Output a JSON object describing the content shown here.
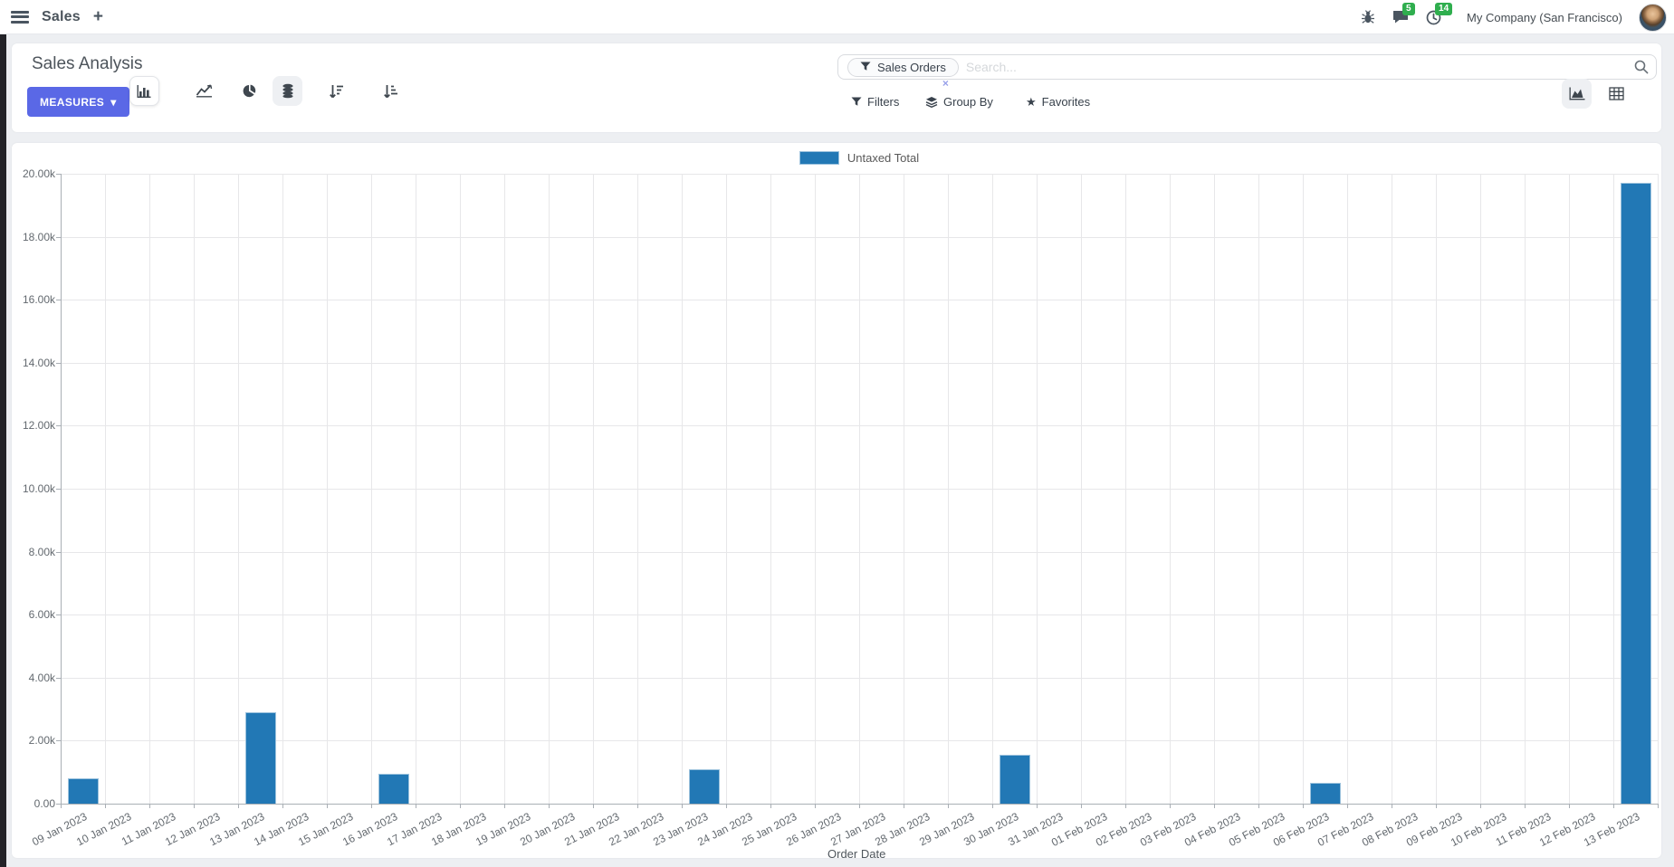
{
  "navbar": {
    "app_label": "Sales",
    "messages_badge": "5",
    "activities_badge": "14",
    "company_name": "My Company (San Francisco)"
  },
  "control_panel": {
    "title": "Sales Analysis",
    "measures_button": "MEASURES",
    "search": {
      "facet": "Sales Orders",
      "placeholder": "Search...",
      "facet_remove": "×"
    },
    "filters_label": "Filters",
    "group_by_label": "Group By",
    "favorites_label": "Favorites"
  },
  "icons": {
    "measures_caret": "▾",
    "plus": "+",
    "favorites_star": "★"
  },
  "colors": {
    "primary_button": "#5a68e6",
    "bar_fill": "#2278b5",
    "bar_border": "#9cc2dd",
    "badge_green": "#2fae4e"
  },
  "chart_data": {
    "type": "bar",
    "title": "",
    "legend_position": "top",
    "grid": true,
    "xlabel": "Order Date",
    "ylabel": "",
    "ylim": [
      0,
      20000
    ],
    "y_tick_labels": [
      "0.00",
      "2.00k",
      "4.00k",
      "6.00k",
      "8.00k",
      "10.00k",
      "12.00k",
      "14.00k",
      "16.00k",
      "18.00k",
      "20.00k"
    ],
    "categories": [
      "09 Jan 2023",
      "10 Jan 2023",
      "11 Jan 2023",
      "12 Jan 2023",
      "13 Jan 2023",
      "14 Jan 2023",
      "15 Jan 2023",
      "16 Jan 2023",
      "17 Jan 2023",
      "18 Jan 2023",
      "19 Jan 2023",
      "20 Jan 2023",
      "21 Jan 2023",
      "22 Jan 2023",
      "23 Jan 2023",
      "24 Jan 2023",
      "25 Jan 2023",
      "26 Jan 2023",
      "27 Jan 2023",
      "28 Jan 2023",
      "29 Jan 2023",
      "30 Jan 2023",
      "31 Jan 2023",
      "01 Feb 2023",
      "02 Feb 2023",
      "03 Feb 2023",
      "04 Feb 2023",
      "05 Feb 2023",
      "06 Feb 2023",
      "07 Feb 2023",
      "08 Feb 2023",
      "09 Feb 2023",
      "10 Feb 2023",
      "11 Feb 2023",
      "12 Feb 2023",
      "13 Feb 2023"
    ],
    "series": [
      {
        "name": "Untaxed Total",
        "color": "#2278b5",
        "values": [
          800,
          0,
          0,
          0,
          2900,
          0,
          0,
          950,
          0,
          0,
          0,
          0,
          0,
          0,
          1080,
          0,
          0,
          0,
          0,
          0,
          0,
          1550,
          0,
          0,
          0,
          0,
          0,
          0,
          660,
          0,
          0,
          0,
          0,
          0,
          0,
          19700
        ]
      }
    ]
  }
}
